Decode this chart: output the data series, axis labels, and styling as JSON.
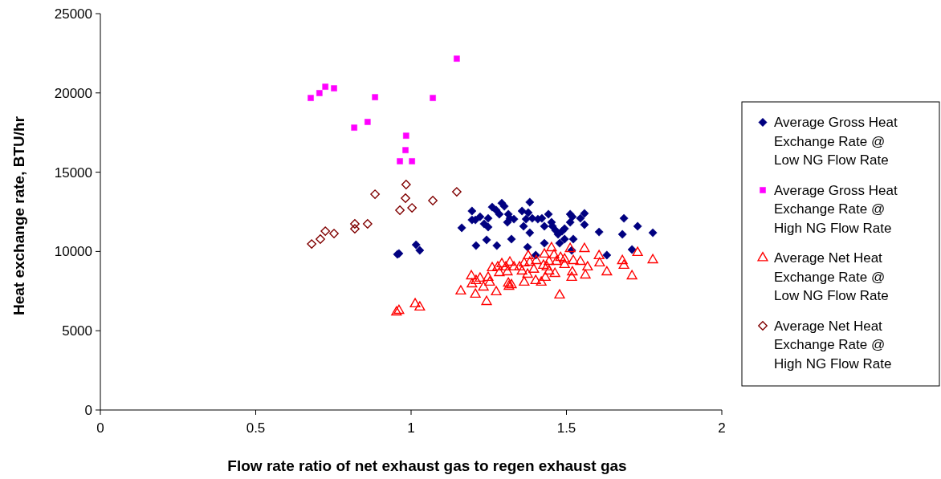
{
  "chart_data": {
    "type": "scatter",
    "xlabel": "Flow rate ratio of net exhaust gas to regen exhaust gas",
    "ylabel": "Heat exchange rate, BTU/hr",
    "xlim": [
      0,
      2
    ],
    "xticks": [
      0,
      0.5,
      1,
      1.5,
      2
    ],
    "ylim": [
      0,
      25000
    ],
    "yticks": [
      0,
      5000,
      10000,
      15000,
      20000,
      25000
    ],
    "grid": false,
    "legend": "right",
    "series": [
      {
        "name": "Average Gross Heat Exchange Rate @ Low NG Flow Rate",
        "color": "#000080",
        "marker": "diamond",
        "x": [
          0.956,
          0.961,
          1.016,
          1.028,
          1.163,
          1.196,
          1.196,
          1.207,
          1.209,
          1.222,
          1.235,
          1.243,
          1.248,
          1.248,
          1.261,
          1.274,
          1.276,
          1.284,
          1.292,
          1.3,
          1.31,
          1.313,
          1.318,
          1.323,
          1.331,
          1.357,
          1.362,
          1.37,
          1.377,
          1.382,
          1.382,
          1.375,
          1.39,
          1.401,
          1.408,
          1.421,
          1.429,
          1.429,
          1.442,
          1.452,
          1.455,
          1.465,
          1.473,
          1.478,
          1.486,
          1.494,
          1.494,
          1.512,
          1.512,
          1.519,
          1.522,
          1.517,
          1.545,
          1.558,
          1.558,
          1.605,
          1.63,
          1.68,
          1.685,
          1.711,
          1.729,
          1.778
        ],
        "values": [
          9820,
          9870,
          10420,
          10070,
          11490,
          12550,
          11990,
          11990,
          10370,
          12190,
          11740,
          10730,
          12090,
          11540,
          12800,
          12600,
          10370,
          12350,
          13050,
          12850,
          11840,
          12350,
          12090,
          10780,
          12040,
          12550,
          11590,
          12040,
          12450,
          13110,
          11180,
          10270,
          12090,
          9770,
          12040,
          12090,
          11590,
          10520,
          12350,
          11840,
          11590,
          11330,
          11080,
          10520,
          11280,
          11440,
          10780,
          12350,
          11840,
          12190,
          10780,
          10070,
          12090,
          12400,
          11690,
          11230,
          9770,
          11080,
          12090,
          10120,
          11590,
          11180
        ]
      },
      {
        "name": "Average Gross Heat Exchange Rate @ High NG Flow Rate",
        "color": "#ff00ff",
        "marker": "square",
        "x": [
          0.677,
          0.705,
          0.724,
          0.752,
          0.817,
          0.86,
          0.884,
          0.984,
          0.982,
          0.964,
          1.003,
          1.07,
          1.147
        ],
        "values": [
          19680,
          19990,
          20390,
          20290,
          17810,
          18170,
          19730,
          17300,
          16390,
          15690,
          15690,
          19680,
          22160
        ]
      },
      {
        "name": "Average Net Heat Exchange Rate @ Low NG Flow Rate",
        "color": "#ff0000",
        "marker": "triangle",
        "x": [
          0.953,
          0.961,
          1.013,
          1.028,
          1.16,
          1.194,
          1.196,
          1.207,
          1.209,
          1.222,
          1.233,
          1.243,
          1.248,
          1.253,
          1.261,
          1.274,
          1.279,
          1.284,
          1.292,
          1.305,
          1.31,
          1.313,
          1.318,
          1.315,
          1.323,
          1.331,
          1.349,
          1.357,
          1.364,
          1.364,
          1.375,
          1.377,
          1.382,
          1.395,
          1.401,
          1.403,
          1.419,
          1.426,
          1.429,
          1.432,
          1.437,
          1.444,
          1.444,
          1.452,
          1.46,
          1.463,
          1.468,
          1.478,
          1.481,
          1.494,
          1.494,
          1.512,
          1.517,
          1.519,
          1.522,
          1.545,
          1.558,
          1.561,
          1.568,
          1.605,
          1.607,
          1.63,
          1.68,
          1.685,
          1.711,
          1.729,
          1.778
        ],
        "values": [
          6170,
          6270,
          6680,
          6480,
          7490,
          8450,
          7940,
          7290,
          8150,
          8300,
          7740,
          6830,
          8350,
          8050,
          8960,
          7440,
          9010,
          8650,
          9210,
          9010,
          8700,
          7990,
          9310,
          7790,
          7890,
          9010,
          9010,
          8750,
          8050,
          9260,
          8550,
          9720,
          9310,
          8860,
          8150,
          9410,
          8050,
          9110,
          9820,
          8350,
          9010,
          8750,
          9360,
          10220,
          9770,
          8600,
          9360,
          7240,
          9610,
          9510,
          9160,
          10170,
          8350,
          8700,
          9410,
          9360,
          10170,
          8500,
          9010,
          9720,
          9260,
          8700,
          9410,
          9110,
          8450,
          9920,
          9460
        ]
      },
      {
        "name": "Average Net Heat Exchange Rate @ High NG Flow Rate",
        "color": "#800000",
        "marker": "diamond",
        "x": [
          0.68,
          0.708,
          0.724,
          0.752,
          0.819,
          0.819,
          0.86,
          0.884,
          0.964,
          0.984,
          0.982,
          1.003,
          1.07,
          1.147
        ],
        "values": [
          10470,
          10780,
          11280,
          11130,
          11430,
          11740,
          11740,
          13610,
          12600,
          14220,
          13360,
          12750,
          13210,
          13760
        ]
      }
    ]
  }
}
